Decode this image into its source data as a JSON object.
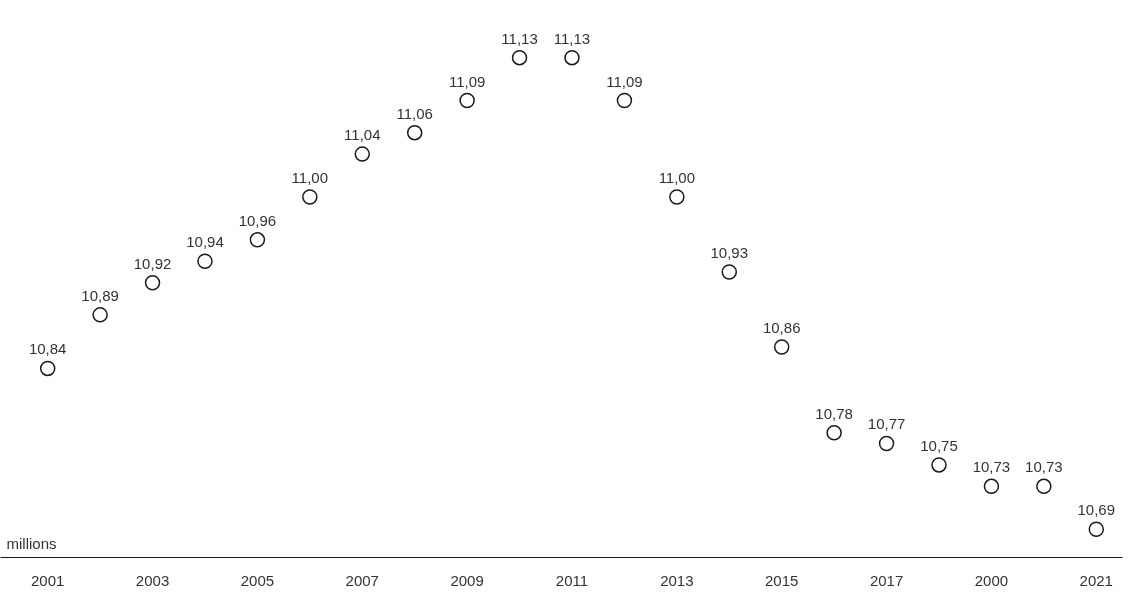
{
  "chart_data": {
    "type": "scatter",
    "annotations": [
      "millions"
    ],
    "categories": [
      "2001",
      null,
      "2003",
      null,
      "2005",
      null,
      "2007",
      null,
      "2009",
      null,
      "2011",
      null,
      "2013",
      null,
      "2015",
      null,
      "2017",
      null,
      "2000",
      null,
      "2021"
    ],
    "series": [
      {
        "color": "#1a1a1a",
        "values": [
          10.84,
          10.89,
          10.92,
          10.94,
          10.96,
          11.0,
          11.04,
          11.06,
          11.09,
          11.13,
          11.13,
          11.09,
          11.0,
          10.93,
          10.86,
          10.78,
          10.77,
          10.75,
          10.73,
          10.73,
          10.69
        ],
        "value_labels": [
          "10,84",
          "10,89",
          "10,92",
          "10,94",
          "10,96",
          "11,00",
          "11,04",
          "11,06",
          "11,09",
          "11,13",
          "11,13",
          "11,09",
          "11,00",
          "10,93",
          "10,86",
          "10,78",
          "10,77",
          "10,75",
          "10,73",
          "10,73",
          "10,69"
        ]
      }
    ],
    "marker": "circle",
    "grid": false
  }
}
